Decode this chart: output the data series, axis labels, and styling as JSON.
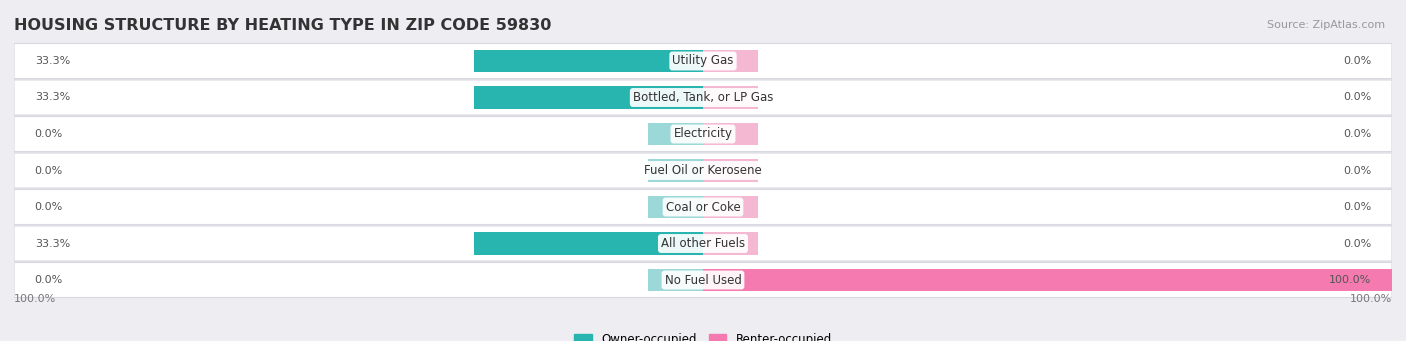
{
  "title": "HOUSING STRUCTURE BY HEATING TYPE IN ZIP CODE 59830",
  "source_text": "Source: ZipAtlas.com",
  "categories": [
    "Utility Gas",
    "Bottled, Tank, or LP Gas",
    "Electricity",
    "Fuel Oil or Kerosene",
    "Coal or Coke",
    "All other Fuels",
    "No Fuel Used"
  ],
  "owner_values": [
    33.3,
    33.3,
    0.0,
    0.0,
    0.0,
    33.3,
    0.0
  ],
  "renter_values": [
    0.0,
    0.0,
    0.0,
    0.0,
    0.0,
    0.0,
    100.0
  ],
  "owner_color": "#28b5b0",
  "owner_color_light": "#9dd8d8",
  "renter_color": "#f47ab0",
  "renter_color_light": "#f5b8d2",
  "bg_color": "#ededf2",
  "row_bg_color": "#ffffff",
  "row_border_color": "#d8d8e0",
  "bar_height": 0.62,
  "zero_bar_width": 8,
  "xlim": 100,
  "axis_label_left": "100.0%",
  "axis_label_right": "100.0%",
  "legend_owner": "Owner-occupied",
  "legend_renter": "Renter-occupied",
  "title_fontsize": 11.5,
  "label_fontsize": 8.5,
  "value_fontsize": 8.0,
  "source_fontsize": 8.0
}
